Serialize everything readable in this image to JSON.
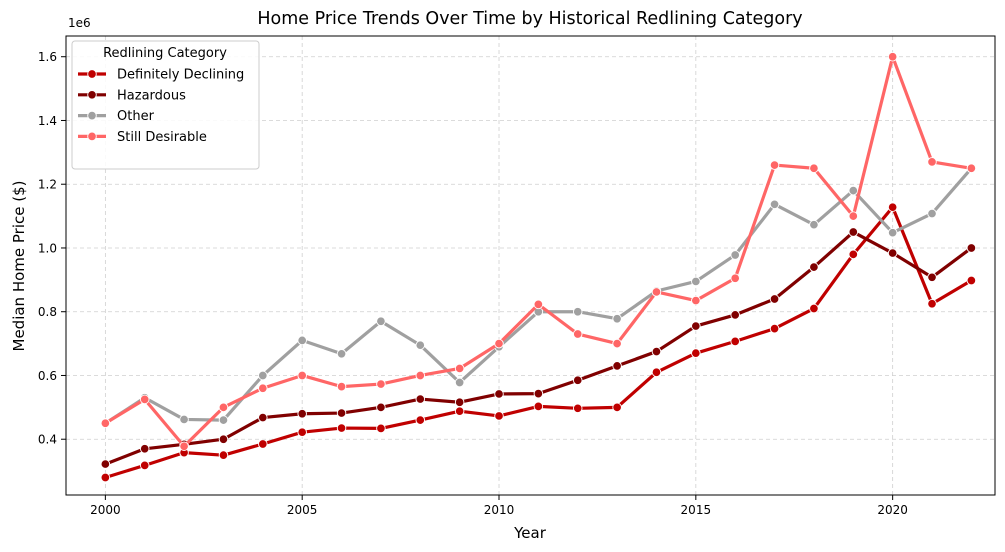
{
  "chart_data": {
    "type": "line",
    "title": "Home Price Trends Over Time by Historical Redlining Category",
    "xlabel": "Year",
    "ylabel": "Median Home Price ($)",
    "y_offset_label": "1e6",
    "xlim": [
      1999.0,
      2022.6
    ],
    "ylim": [
      0.225,
      1.665
    ],
    "x_ticks": [
      2000,
      2005,
      2010,
      2015,
      2020
    ],
    "y_ticks": [
      0.4,
      0.6,
      0.8,
      1.0,
      1.2,
      1.4,
      1.6
    ],
    "y_tick_labels": [
      "0.4",
      "0.6",
      "0.8",
      "1.0",
      "1.2",
      "1.4",
      "1.6"
    ],
    "grid": true,
    "legend": {
      "title": "Redlining Category",
      "placement": "top-left"
    },
    "series": [
      {
        "name": "Definitely Declining",
        "color": "#c00000",
        "x": [
          2000,
          2001,
          2002,
          2003,
          2004,
          2005,
          2006,
          2007,
          2008,
          2009,
          2010,
          2011,
          2012,
          2013,
          2014,
          2015,
          2016,
          2017,
          2018,
          2019,
          2020,
          2021,
          2022
        ],
        "values": [
          0.28,
          0.318,
          0.358,
          0.35,
          0.385,
          0.422,
          0.435,
          0.434,
          0.46,
          0.488,
          0.473,
          0.503,
          0.497,
          0.5,
          0.61,
          0.67,
          0.707,
          0.747,
          0.81,
          0.98,
          1.128,
          0.825,
          0.898
        ]
      },
      {
        "name": "Hazardous",
        "color": "#800000",
        "x": [
          2000,
          2001,
          2002,
          2003,
          2004,
          2005,
          2006,
          2007,
          2008,
          2009,
          2010,
          2011,
          2012,
          2013,
          2014,
          2015,
          2016,
          2017,
          2018,
          2019,
          2020,
          2021,
          2022
        ],
        "values": [
          0.322,
          0.37,
          0.384,
          0.4,
          0.468,
          0.48,
          0.482,
          0.5,
          0.526,
          0.516,
          0.542,
          0.543,
          0.585,
          0.63,
          0.675,
          0.755,
          0.79,
          0.84,
          0.94,
          1.05,
          0.984,
          0.908,
          1.0
        ]
      },
      {
        "name": "Other",
        "color": "#a0a0a0",
        "x": [
          2000,
          2001,
          2002,
          2003,
          2004,
          2005,
          2006,
          2007,
          2008,
          2009,
          2010,
          2011,
          2012,
          2013,
          2014,
          2015,
          2016,
          2017,
          2018,
          2019,
          2020,
          2021,
          2022
        ],
        "values": [
          0.45,
          0.53,
          0.462,
          0.46,
          0.6,
          0.71,
          0.668,
          0.77,
          0.695,
          0.578,
          0.69,
          0.8,
          0.8,
          0.778,
          0.865,
          0.895,
          0.978,
          1.137,
          1.073,
          1.18,
          1.048,
          1.108,
          1.25
        ]
      },
      {
        "name": "Still Desirable",
        "color": "#ff6666",
        "x": [
          2000,
          2001,
          2002,
          2003,
          2004,
          2005,
          2006,
          2007,
          2008,
          2009,
          2010,
          2011,
          2012,
          2013,
          2014,
          2015,
          2016,
          2017,
          2018,
          2019,
          2020,
          2021,
          2022
        ],
        "values": [
          0.45,
          0.525,
          0.378,
          0.5,
          0.56,
          0.6,
          0.565,
          0.573,
          0.6,
          0.622,
          0.7,
          0.823,
          0.73,
          0.7,
          0.862,
          0.835,
          0.905,
          1.26,
          1.25,
          1.1,
          1.6,
          1.27,
          1.25
        ]
      }
    ]
  }
}
